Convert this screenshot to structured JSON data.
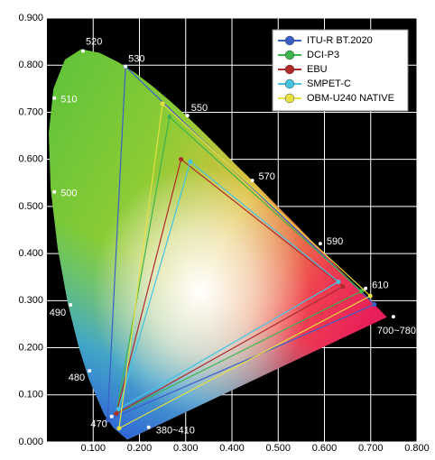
{
  "chart_data": {
    "type": "chromaticity",
    "xlim": [
      0,
      0.8
    ],
    "ylim": [
      0,
      0.9
    ],
    "xticks": [
      {
        "value": 0.1,
        "label": "0.100"
      },
      {
        "value": 0.2,
        "label": "0.200"
      },
      {
        "value": 0.3,
        "label": "0.300"
      },
      {
        "value": 0.4,
        "label": "0.400"
      },
      {
        "value": 0.5,
        "label": "0.500"
      },
      {
        "value": 0.6,
        "label": "0.600"
      },
      {
        "value": 0.7,
        "label": "0.700"
      },
      {
        "value": 0.8,
        "label": "0.800"
      }
    ],
    "yticks": [
      {
        "value": 0,
        "label": "0.000"
      },
      {
        "value": 0.1,
        "label": "0.100"
      },
      {
        "value": 0.2,
        "label": "0.200"
      },
      {
        "value": 0.3,
        "label": "0.300"
      },
      {
        "value": 0.4,
        "label": "0.400"
      },
      {
        "value": 0.5,
        "label": "0.500"
      },
      {
        "value": 0.6,
        "label": "0.600"
      },
      {
        "value": 0.7,
        "label": "0.700"
      },
      {
        "value": 0.8,
        "label": "0.800"
      },
      {
        "value": 0.9,
        "label": "0.900"
      }
    ],
    "grid": true,
    "legend_position": "upper right",
    "locus": {
      "x": [
        0.174,
        0.144,
        0.124,
        0.091,
        0.069,
        0.045,
        0.023,
        0.008,
        0.004,
        0.014,
        0.039,
        0.074,
        0.114,
        0.155,
        0.193,
        0.23,
        0.266,
        0.302,
        0.337,
        0.373,
        0.408,
        0.444,
        0.479,
        0.512,
        0.545,
        0.575,
        0.603,
        0.627,
        0.648,
        0.666,
        0.68,
        0.692,
        0.701,
        0.735
      ],
      "y": [
        0.005,
        0.03,
        0.058,
        0.133,
        0.201,
        0.295,
        0.413,
        0.538,
        0.655,
        0.75,
        0.812,
        0.834,
        0.826,
        0.806,
        0.782,
        0.754,
        0.724,
        0.692,
        0.659,
        0.624,
        0.589,
        0.555,
        0.52,
        0.487,
        0.455,
        0.424,
        0.397,
        0.372,
        0.351,
        0.333,
        0.32,
        0.308,
        0.299,
        0.265
      ]
    },
    "wavelength_points": {
      "labels": [
        "380~410",
        "470",
        "480",
        "490",
        "500",
        "510",
        "520",
        "530",
        "550",
        "570",
        "590",
        "610",
        "700~780"
      ],
      "x": [
        0.22,
        0.14,
        0.092,
        0.051,
        0.016,
        0.016,
        0.078,
        0.17,
        0.304,
        0.444,
        0.591,
        0.689,
        0.749
      ],
      "y": [
        0.031,
        0.054,
        0.151,
        0.291,
        0.531,
        0.73,
        0.83,
        0.797,
        0.693,
        0.555,
        0.421,
        0.326,
        0.266
      ]
    },
    "series": [
      {
        "name": "ITU-R BT.2020",
        "color": "#3a5fc8",
        "x": [
          0.708,
          0.17,
          0.131
        ],
        "y": [
          0.292,
          0.797,
          0.046
        ]
      },
      {
        "name": "DCI-P3",
        "color": "#3cb44b",
        "x": [
          0.68,
          0.265,
          0.15
        ],
        "y": [
          0.32,
          0.69,
          0.06
        ]
      },
      {
        "name": "EBU",
        "color": "#b02a2a",
        "x": [
          0.64,
          0.29,
          0.15
        ],
        "y": [
          0.33,
          0.6,
          0.06
        ]
      },
      {
        "name": "SMPET-C",
        "color": "#45c3e3",
        "x": [
          0.63,
          0.31,
          0.155
        ],
        "y": [
          0.34,
          0.595,
          0.07
        ]
      },
      {
        "name": "OBM-U240 NATIVE",
        "color": "#e6e040",
        "x": [
          0.699,
          0.25,
          0.156
        ],
        "y": [
          0.31,
          0.718,
          0.029
        ]
      }
    ]
  }
}
